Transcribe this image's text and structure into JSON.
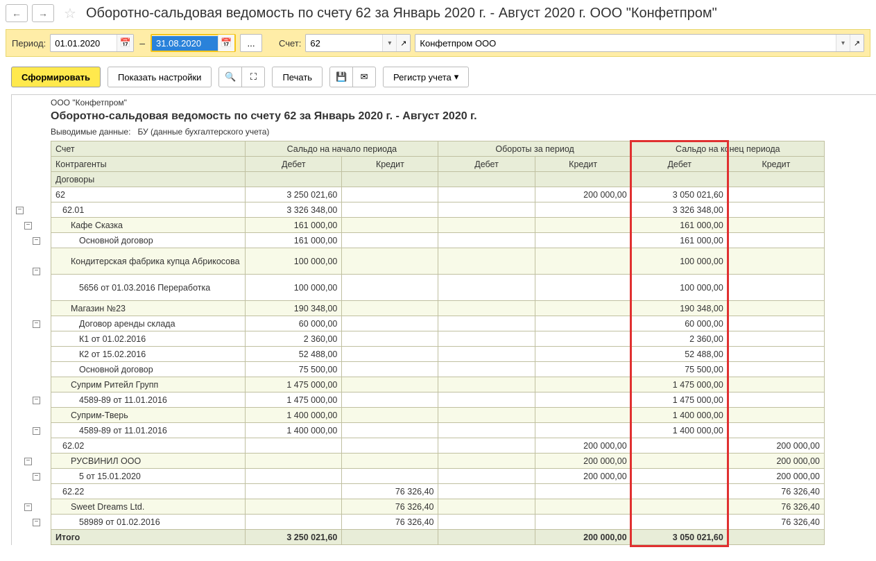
{
  "title": "Оборотно-сальдовая ведомость по счету 62 за Январь 2020 г. - Август 2020 г. ООО \"Конфетпром\"",
  "period_label": "Период:",
  "date_from": "01.01.2020",
  "date_to": "31.08.2020",
  "account_label": "Счет:",
  "account_value": "62",
  "org_value": "Конфетпром ООО",
  "btn_generate": "Сформировать",
  "btn_settings": "Показать настройки",
  "btn_print": "Печать",
  "btn_register": "Регистр учета",
  "report_company": "ООО \"Конфетпром\"",
  "report_title": "Оборотно-сальдовая ведомость по счету 62 за Январь 2020 г. - Август 2020 г.",
  "report_subtitle_label": "Выводимые данные:",
  "report_subtitle_value": "БУ (данные бухгалтерского учета)",
  "headers": {
    "account": "Счет",
    "contragents": "Контрагенты",
    "contracts": "Договоры",
    "saldo_start": "Сальдо на начало периода",
    "turnover": "Обороты за период",
    "saldo_end": "Сальдо на конец периода",
    "debit": "Дебет",
    "credit": "Кредит",
    "total": "Итого"
  },
  "highlight": {
    "col_start": 5,
    "col_end": 5
  },
  "rows": [
    {
      "level": 0,
      "type": "data",
      "label": "62",
      "vals": [
        "3 250 021,60",
        "",
        "",
        "200 000,00",
        "3 050 021,60",
        ""
      ]
    },
    {
      "level": 1,
      "type": "data",
      "label": "62.01",
      "vals": [
        "3 326 348,00",
        "",
        "",
        "",
        "3 326 348,00",
        ""
      ]
    },
    {
      "level": 2,
      "type": "detail",
      "label": "Кафе Сказка",
      "vals": [
        "161 000,00",
        "",
        "",
        "",
        "161 000,00",
        ""
      ]
    },
    {
      "level": 3,
      "type": "data",
      "label": "Основной договор",
      "vals": [
        "161 000,00",
        "",
        "",
        "",
        "161 000,00",
        ""
      ]
    },
    {
      "level": 2,
      "type": "detail",
      "label": "Кондитерская фабрика купца Абрикосова",
      "vals": [
        "100 000,00",
        "",
        "",
        "",
        "100 000,00",
        ""
      ],
      "tall": true
    },
    {
      "level": 3,
      "type": "data",
      "label": "5656 от 01.03.2016 Переработка",
      "vals": [
        "100 000,00",
        "",
        "",
        "",
        "100 000,00",
        ""
      ],
      "tall": true
    },
    {
      "level": 2,
      "type": "detail",
      "label": "Магазин №23",
      "vals": [
        "190 348,00",
        "",
        "",
        "",
        "190 348,00",
        ""
      ]
    },
    {
      "level": 3,
      "type": "data",
      "label": "Договор аренды склада",
      "vals": [
        "60 000,00",
        "",
        "",
        "",
        "60 000,00",
        ""
      ]
    },
    {
      "level": 3,
      "type": "data",
      "label": "К1 от 01.02.2016",
      "vals": [
        "2 360,00",
        "",
        "",
        "",
        "2 360,00",
        ""
      ]
    },
    {
      "level": 3,
      "type": "data",
      "label": "К2 от 15.02.2016",
      "vals": [
        "52 488,00",
        "",
        "",
        "",
        "52 488,00",
        ""
      ]
    },
    {
      "level": 3,
      "type": "data",
      "label": "Основной договор",
      "vals": [
        "75 500,00",
        "",
        "",
        "",
        "75 500,00",
        ""
      ]
    },
    {
      "level": 2,
      "type": "detail",
      "label": "Суприм Ритейл Групп",
      "vals": [
        "1 475 000,00",
        "",
        "",
        "",
        "1 475 000,00",
        ""
      ]
    },
    {
      "level": 3,
      "type": "data",
      "label": "4589-89 от 11.01.2016",
      "vals": [
        "1 475 000,00",
        "",
        "",
        "",
        "1 475 000,00",
        ""
      ]
    },
    {
      "level": 2,
      "type": "detail",
      "label": "Суприм-Тверь",
      "vals": [
        "1 400 000,00",
        "",
        "",
        "",
        "1 400 000,00",
        ""
      ]
    },
    {
      "level": 3,
      "type": "data",
      "label": "4589-89 от 11.01.2016",
      "vals": [
        "1 400 000,00",
        "",
        "",
        "",
        "1 400 000,00",
        ""
      ]
    },
    {
      "level": 1,
      "type": "data",
      "label": "62.02",
      "vals": [
        "",
        "",
        "",
        "200 000,00",
        "",
        "200 000,00"
      ]
    },
    {
      "level": 2,
      "type": "detail",
      "label": "РУСВИНИЛ ООО",
      "vals": [
        "",
        "",
        "",
        "200 000,00",
        "",
        "200 000,00"
      ]
    },
    {
      "level": 3,
      "type": "data",
      "label": "5 от 15.01.2020",
      "vals": [
        "",
        "",
        "",
        "200 000,00",
        "",
        "200 000,00"
      ]
    },
    {
      "level": 1,
      "type": "data",
      "label": "62.22",
      "vals": [
        "",
        "76 326,40",
        "",
        "",
        "",
        "76 326,40"
      ]
    },
    {
      "level": 2,
      "type": "detail",
      "label": "Sweet Dreams Ltd.",
      "vals": [
        "",
        "76 326,40",
        "",
        "",
        "",
        "76 326,40"
      ]
    },
    {
      "level": 3,
      "type": "data",
      "label": "58989 от 01.02.2016",
      "vals": [
        "",
        "76 326,40",
        "",
        "",
        "",
        "76 326,40"
      ]
    }
  ],
  "total_row": {
    "label": "Итого",
    "vals": [
      "3 250 021,60",
      "",
      "",
      "200 000,00",
      "3 050 021,60",
      ""
    ]
  },
  "toggles": [
    {
      "row": 0,
      "level": 0
    },
    {
      "row": 1,
      "level": 1
    },
    {
      "row": 2,
      "level": 2
    },
    {
      "row": 4,
      "level": 2
    },
    {
      "row": 6,
      "level": 2
    },
    {
      "row": 11,
      "level": 2
    },
    {
      "row": 13,
      "level": 2
    },
    {
      "row": 15,
      "level": 1
    },
    {
      "row": 16,
      "level": 2
    },
    {
      "row": 18,
      "level": 1
    },
    {
      "row": 19,
      "level": 2
    }
  ]
}
